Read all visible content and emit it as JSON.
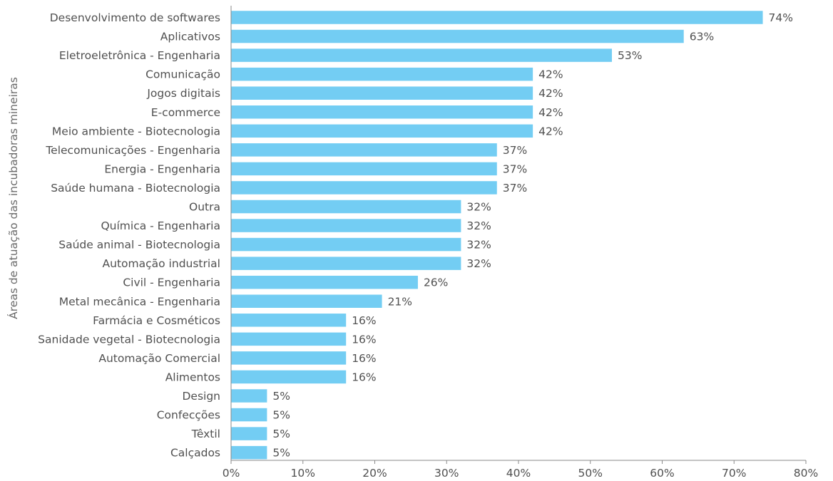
{
  "chart_data": {
    "type": "bar",
    "orientation": "horizontal",
    "title": "",
    "xlabel": "",
    "ylabel": "Áreas de atuação das incubadoras mineiras",
    "xlim": [
      0,
      80
    ],
    "xticks": [
      0,
      10,
      20,
      30,
      40,
      50,
      60,
      70,
      80
    ],
    "tick_suffix": "%",
    "grid": false,
    "bar_color": "#73cdf3",
    "categories": [
      "Desenvolvimento de softwares",
      "Aplicativos",
      "Eletroeletrônica - Engenharia",
      "Comunicação",
      "Jogos digitais",
      "E-commerce",
      "Meio ambiente - Biotecnologia",
      "Telecomunicações - Engenharia",
      "Energia - Engenharia",
      "Saúde humana - Biotecnologia",
      "Outra",
      "Química - Engenharia",
      "Saúde animal - Biotecnologia",
      "Automação industrial",
      "Civil - Engenharia",
      "Metal mecânica - Engenharia",
      "Farmácia e Cosméticos",
      "Sanidade vegetal - Biotecnologia",
      "Automação Comercial",
      "Alimentos",
      "Design",
      "Confecções",
      "Têxtil",
      "Calçados"
    ],
    "values": [
      74,
      63,
      53,
      42,
      42,
      42,
      42,
      37,
      37,
      37,
      32,
      32,
      32,
      32,
      26,
      21,
      16,
      16,
      16,
      16,
      5,
      5,
      5,
      5
    ]
  }
}
